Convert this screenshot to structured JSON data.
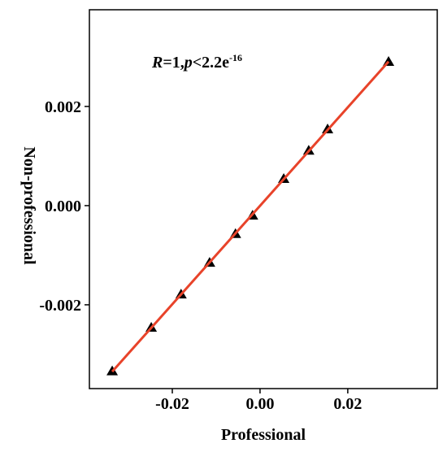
{
  "chart_data": {
    "type": "scatter",
    "xlabel": "Professional",
    "ylabel": "Non-professional",
    "annotation": [
      "R",
      "=1,",
      "p",
      "<2.2e",
      "-16"
    ],
    "series": [
      {
        "color": "#000000",
        "line_color": "#e8432a",
        "x": [
          -0.0337,
          -0.0248,
          -0.018,
          -0.0115,
          -0.0056,
          -0.0017,
          0.0054,
          0.0111,
          0.0154,
          0.0293
        ],
        "values": [
          -0.00334,
          -0.00246,
          -0.00179,
          -0.00115,
          -0.00057,
          -0.0002,
          0.00054,
          0.00111,
          0.00154,
          0.0029
        ]
      }
    ],
    "xlim": [
      -0.0389,
      0.0404
    ],
    "xticks": [
      -0.02,
      {
        "value": 0,
        "label": "0.00"
      },
      0.02
    ],
    "ylim": [
      -0.00369,
      0.00395
    ],
    "yticks": [
      {
        "value": -0.002,
        "label": "-0.002"
      },
      {
        "value": 0,
        "label": "0.000"
      },
      {
        "value": 0.002,
        "label": "0.002"
      }
    ]
  }
}
